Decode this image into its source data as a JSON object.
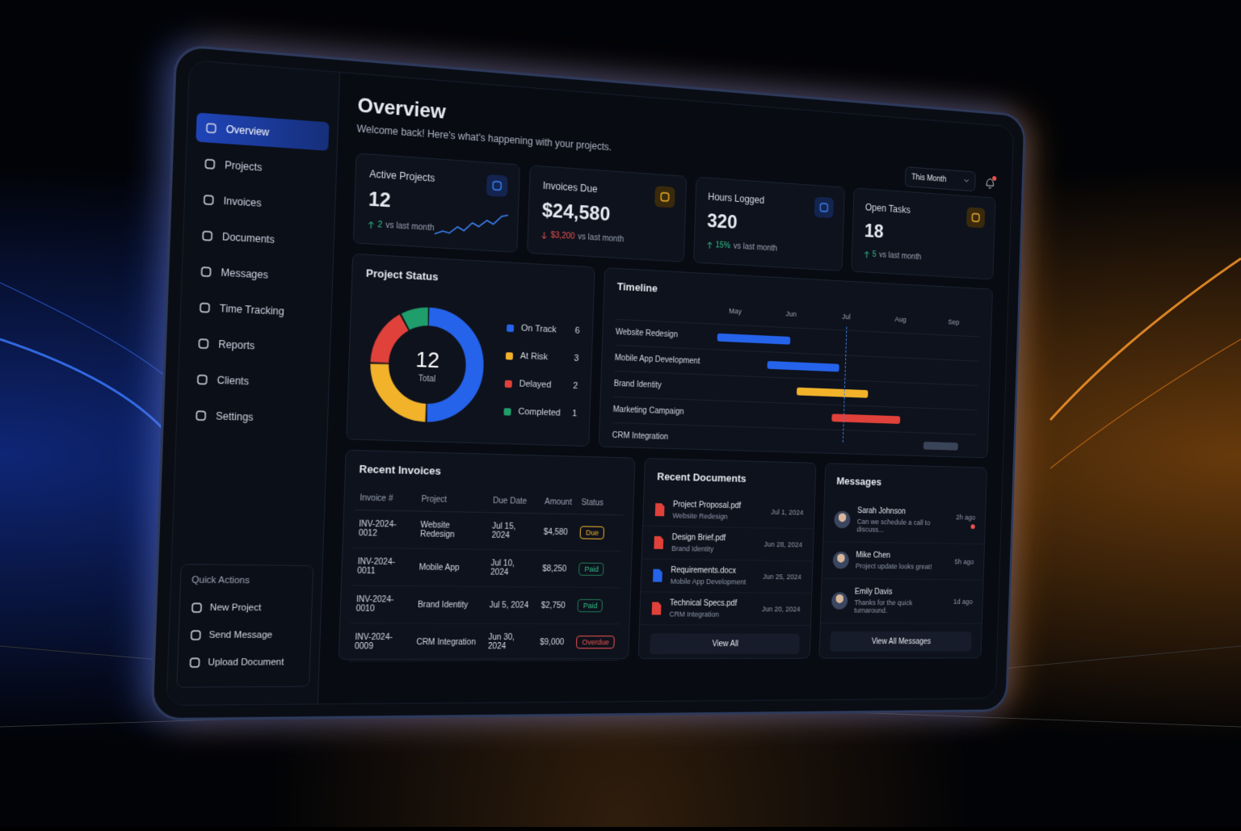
{
  "sidebar": {
    "nav": [
      "Overview",
      "Projects",
      "Invoices",
      "Documents",
      "Messages",
      "Time Tracking",
      "Reports",
      "Clients",
      "Settings"
    ],
    "quick_actions": {
      "title": "Quick Actions",
      "items": [
        "New Project",
        "Send Message",
        "Upload Document"
      ]
    }
  },
  "header": {
    "title": "Overview",
    "subtitle": "Welcome back! Here's what's happening with your projects.",
    "period": "This Month"
  },
  "kpis": [
    {
      "label": "Active Projects",
      "value": "12",
      "change": "2",
      "note": "vs last month",
      "trend": "up"
    },
    {
      "label": "Invoices Due",
      "value": "$24,580",
      "change": "$3,200",
      "note": "vs last month",
      "trend": "down"
    },
    {
      "label": "Hours Logged",
      "value": "320",
      "change": "15%",
      "note": "vs last month",
      "trend": "up"
    },
    {
      "label": "Open Tasks",
      "value": "18",
      "change": "5",
      "note": "vs last month",
      "trend": "up"
    }
  ],
  "project_status": {
    "title": "Project Status",
    "total": 12,
    "total_label": "Total",
    "items": [
      {
        "name": "On Track",
        "value": 6,
        "color": "#2563eb"
      },
      {
        "name": "At Risk",
        "value": 3,
        "color": "#f2b32a"
      },
      {
        "name": "Delayed",
        "value": 2,
        "color": "#e0413a"
      },
      {
        "name": "Completed",
        "value": 1,
        "color": "#1f9d6b"
      }
    ]
  },
  "timeline": {
    "title": "Timeline",
    "months": [
      "May",
      "Jun",
      "Jul",
      "Aug",
      "Sep"
    ],
    "tasks": [
      "Website Redesign",
      "Mobile App Development",
      "Brand Identity",
      "Marketing Campaign",
      "CRM Integration"
    ]
  },
  "invoices": {
    "title": "Recent Invoices",
    "columns": [
      "Invoice #",
      "Project",
      "Due Date",
      "Amount",
      "Status"
    ],
    "rows": [
      [
        "INV-2024-0012",
        "Website Redesign",
        "Jul 15, 2024",
        "$4,580",
        "Due"
      ],
      [
        "INV-2024-0011",
        "Mobile App",
        "Jul 10, 2024",
        "$8,250",
        "Paid"
      ],
      [
        "INV-2024-0010",
        "Brand Identity",
        "Jul 5, 2024",
        "$2,750",
        "Paid"
      ],
      [
        "INV-2024-0009",
        "CRM Integration",
        "Jun 30, 2024",
        "$9,000",
        "Overdue"
      ]
    ]
  },
  "documents": {
    "title": "Recent Documents",
    "button": "View All",
    "items": [
      {
        "name": "Project Proposal.pdf",
        "project": "Website Redesign",
        "date": "Jul 1, 2024"
      },
      {
        "name": "Design Brief.pdf",
        "project": "Brand Identity",
        "date": "Jun 28, 2024"
      },
      {
        "name": "Requirements.docx",
        "project": "Mobile App Development",
        "date": "Jun 25, 2024"
      },
      {
        "name": "Technical Specs.pdf",
        "project": "CRM Integration",
        "date": "Jun 20, 2024"
      }
    ]
  },
  "messages": {
    "title": "Messages",
    "button": "View All Messages",
    "items": [
      {
        "name": "Sarah Johnson",
        "text": "Can we schedule a call to discuss...",
        "time": "2h ago"
      },
      {
        "name": "Mike Chen",
        "text": "Project update looks great!",
        "time": "5h ago"
      },
      {
        "name": "Emily Davis",
        "text": "Thanks for the quick turnaround.",
        "time": "1d ago"
      }
    ]
  }
}
